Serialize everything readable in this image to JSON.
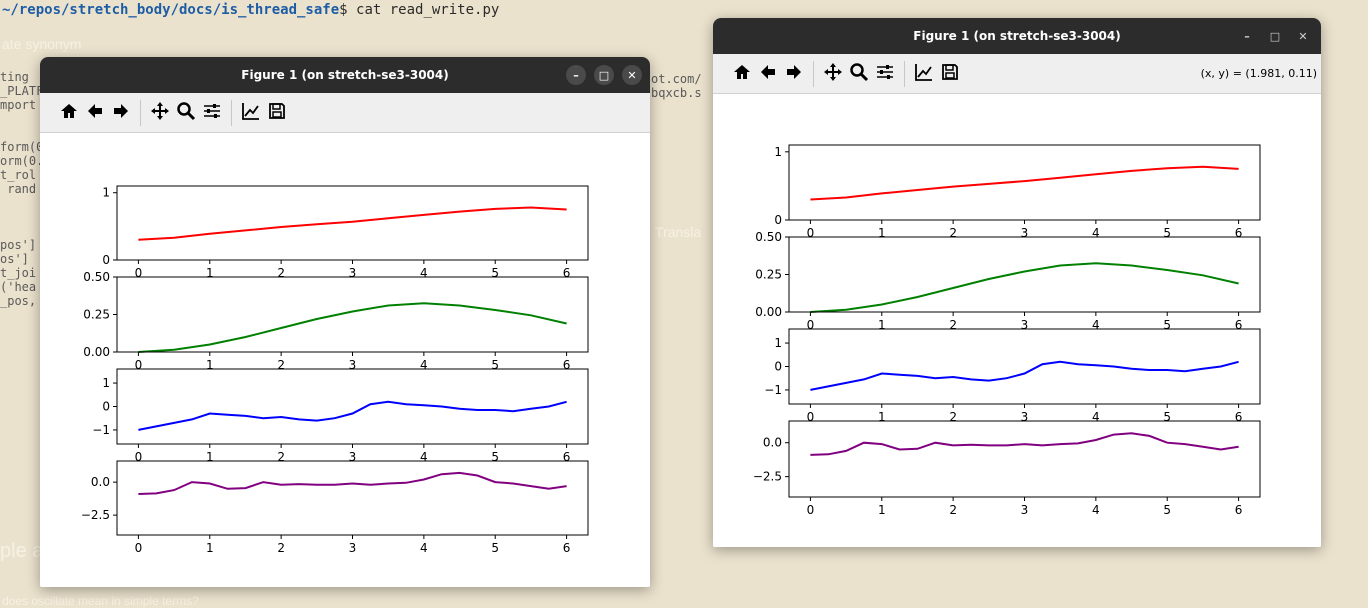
{
  "terminal": {
    "prompt_path": "~/repos/stretch_body/docs/is_thread_safe",
    "prompt_tail": "$ cat read_write.py"
  },
  "background_text": {
    "code_fragments": "ting\n_PLATF\nmport\n\n\nform(0\norm(0.\nt_rol\n rand\n\n\n\npos']\nos']\nt_joi\n('hea\n_pos,",
    "url_fragments": "ot.com/\nbqxcb.s",
    "faded_items": [
      "ate synonym",
      "ple a",
      "does oscillate mean in simple terms?",
      "Transla"
    ]
  },
  "windows": [
    {
      "id": "left",
      "title": "Figure 1 (on stretch-se3-3004)",
      "coords_text": ""
    },
    {
      "id": "right",
      "title": "Figure 1 (on stretch-se3-3004)",
      "coords_text": "(x, y) = (1.981, 0.11)"
    }
  ],
  "toolbar_icons": [
    "home-icon",
    "back-arrow-icon",
    "forward-arrow-icon",
    "pan-icon",
    "zoom-icon",
    "configure-subplots-icon",
    "edit-axis-icon",
    "save-icon"
  ],
  "chart_data": [
    {
      "type": "line",
      "color": "#ff0000",
      "x": [
        0,
        0.5,
        1,
        1.5,
        2,
        2.5,
        3,
        3.5,
        4,
        4.5,
        5,
        5.5,
        6
      ],
      "y": [
        0.3,
        0.33,
        0.39,
        0.44,
        0.49,
        0.53,
        0.57,
        0.62,
        0.67,
        0.72,
        0.76,
        0.78,
        0.75
      ],
      "xlim": [
        -0.3,
        6.3
      ],
      "ylim": [
        0,
        1.1
      ],
      "xticks": [
        "0",
        "1",
        "2",
        "3",
        "4",
        "5",
        "6"
      ],
      "yticks": [
        "0",
        "1"
      ]
    },
    {
      "type": "line",
      "color": "#008000",
      "x": [
        0,
        0.5,
        1,
        1.5,
        2,
        2.5,
        3,
        3.5,
        4,
        4.5,
        5,
        5.5,
        6
      ],
      "y": [
        0.0,
        0.015,
        0.05,
        0.1,
        0.16,
        0.22,
        0.27,
        0.31,
        0.325,
        0.31,
        0.28,
        0.245,
        0.19
      ],
      "xlim": [
        -0.3,
        6.3
      ],
      "ylim": [
        0,
        0.5
      ],
      "xticks": [
        "0",
        "1",
        "2",
        "3",
        "4",
        "5",
        "6"
      ],
      "yticks": [
        "0.00",
        "0.25",
        "0.50"
      ]
    },
    {
      "type": "line",
      "color": "#0000ff",
      "x": [
        0,
        0.25,
        0.5,
        0.75,
        1,
        1.25,
        1.5,
        1.75,
        2,
        2.25,
        2.5,
        2.75,
        3,
        3.25,
        3.5,
        3.75,
        4,
        4.25,
        4.5,
        4.75,
        5,
        5.25,
        5.5,
        5.75,
        6
      ],
      "y": [
        -1.0,
        -0.85,
        -0.7,
        -0.55,
        -0.3,
        -0.35,
        -0.4,
        -0.5,
        -0.45,
        -0.55,
        -0.6,
        -0.5,
        -0.3,
        0.1,
        0.2,
        0.1,
        0.05,
        0.0,
        -0.1,
        -0.15,
        -0.15,
        -0.2,
        -0.1,
        0.0,
        0.2
      ],
      "xlim": [
        -0.3,
        6.3
      ],
      "ylim": [
        -1.6,
        1.6
      ],
      "xticks": [
        "0",
        "1",
        "2",
        "3",
        "4",
        "5",
        "6"
      ],
      "yticks": [
        "-1",
        "0",
        "1"
      ]
    },
    {
      "type": "line",
      "color": "#800080",
      "x": [
        0,
        0.25,
        0.5,
        0.75,
        1,
        1.25,
        1.5,
        1.75,
        2,
        2.25,
        2.5,
        2.75,
        3,
        3.25,
        3.5,
        3.75,
        4,
        4.25,
        4.5,
        4.75,
        5,
        5.25,
        5.5,
        5.75,
        6
      ],
      "y": [
        -0.9,
        -0.85,
        -0.6,
        0.0,
        -0.1,
        -0.5,
        -0.45,
        0.0,
        -0.2,
        -0.15,
        -0.2,
        -0.2,
        -0.1,
        -0.2,
        -0.1,
        -0.05,
        0.2,
        0.6,
        0.7,
        0.5,
        0.0,
        -0.1,
        -0.3,
        -0.5,
        -0.3
      ],
      "xlim": [
        -0.3,
        6.3
      ],
      "ylim": [
        -4.0,
        1.6
      ],
      "xticks": [
        "0",
        "1",
        "2",
        "3",
        "4",
        "5",
        "6"
      ],
      "yticks": [
        "-2.5",
        "0.0"
      ]
    }
  ]
}
